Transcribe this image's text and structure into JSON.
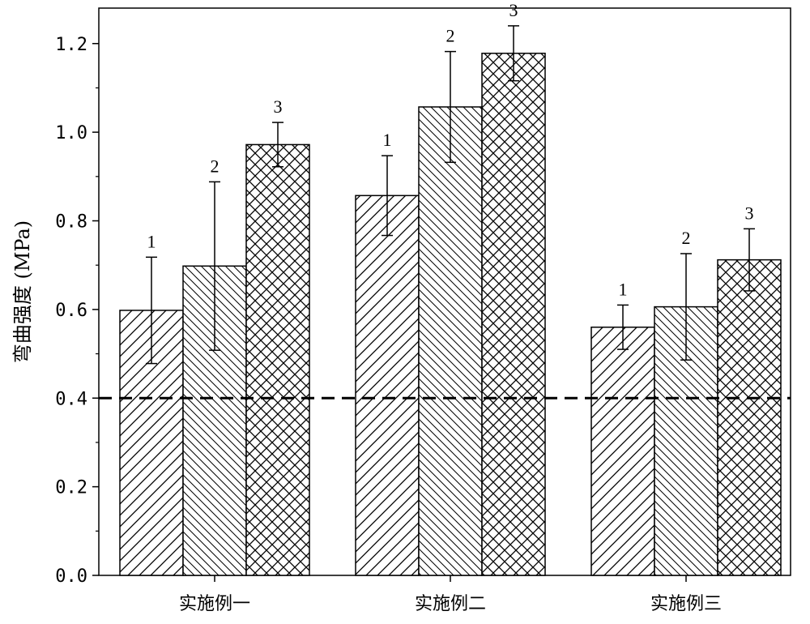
{
  "chart_data": {
    "type": "bar",
    "ylabel": "弯曲强度 (MPa)",
    "xlabel": "",
    "ylim": [
      0,
      1.28
    ],
    "yticks": [
      "0.0",
      "0.2",
      "0.4",
      "0.6",
      "0.8",
      "1.0",
      "1.2"
    ],
    "categories": [
      "实施例一",
      "实施例二",
      "实施例三"
    ],
    "series": [
      {
        "label": "1",
        "pattern": "hatch-forward",
        "values": [
          0.598,
          0.857,
          0.56
        ],
        "errors": [
          0.12,
          0.09,
          0.05
        ]
      },
      {
        "label": "2",
        "pattern": "hatch-backward",
        "values": [
          0.698,
          1.057,
          0.606
        ],
        "errors": [
          0.19,
          0.125,
          0.12
        ]
      },
      {
        "label": "3",
        "pattern": "crosshatch",
        "values": [
          0.972,
          1.178,
          0.712
        ],
        "errors": [
          0.05,
          0.062,
          0.07
        ]
      }
    ],
    "reference_line": {
      "y": 0.4,
      "style": "dashed"
    },
    "grid": false,
    "legend": "none",
    "colors": {
      "bar_fill": "#ffffff",
      "stroke": "#000000",
      "hatch": "#000000"
    }
  }
}
